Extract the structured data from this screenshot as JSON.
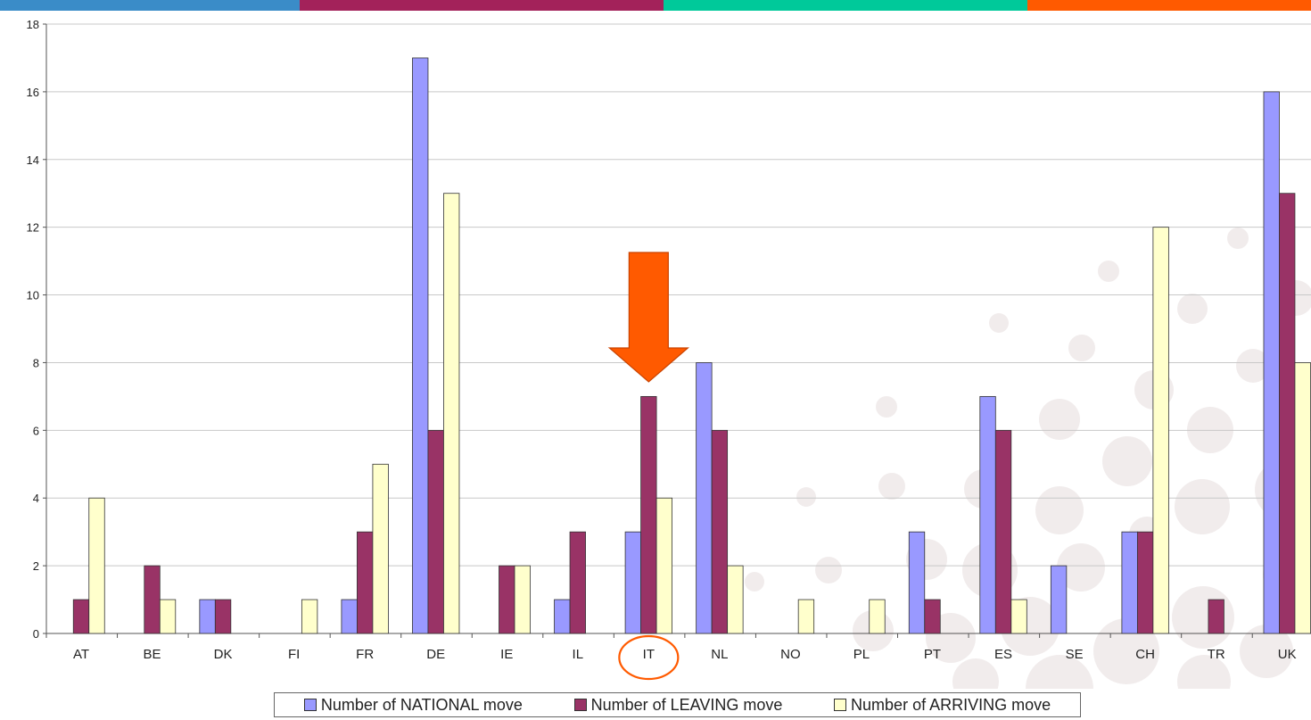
{
  "header_bar": {
    "colors": [
      "#3a8cc8",
      "#a3225a",
      "#00c99a",
      "#ff5a00"
    ]
  },
  "chart_data": {
    "type": "bar",
    "categories": [
      "AT",
      "BE",
      "DK",
      "FI",
      "FR",
      "DE",
      "IE",
      "IL",
      "IT",
      "NL",
      "NO",
      "PL",
      "PT",
      "ES",
      "SE",
      "CH",
      "TR",
      "UK"
    ],
    "series": [
      {
        "name": "Number of NATIONAL move",
        "color": "#9999ff",
        "values": [
          0,
          0,
          1,
          0,
          1,
          17,
          0,
          1,
          3,
          8,
          0,
          0,
          3,
          7,
          2,
          3,
          0,
          16
        ]
      },
      {
        "name": "Number of LEAVING move",
        "color": "#993366",
        "values": [
          1,
          2,
          1,
          0,
          3,
          6,
          2,
          3,
          7,
          6,
          0,
          0,
          1,
          6,
          0,
          3,
          1,
          13
        ]
      },
      {
        "name": "Number of ARRIVING move",
        "color": "#ffffcc",
        "values": [
          4,
          1,
          0,
          1,
          5,
          13,
          2,
          0,
          4,
          2,
          1,
          1,
          0,
          1,
          0,
          12,
          0,
          8
        ]
      }
    ],
    "ylim": [
      0,
      18
    ],
    "yticks": [
      0,
      2,
      4,
      6,
      8,
      10,
      12,
      14,
      16,
      18
    ],
    "grid": true,
    "legend_position": "bottom",
    "annotation": {
      "type": "arrow",
      "color": "#ff5a00",
      "target_category": "IT",
      "circle_color": "#ff5a00"
    }
  }
}
